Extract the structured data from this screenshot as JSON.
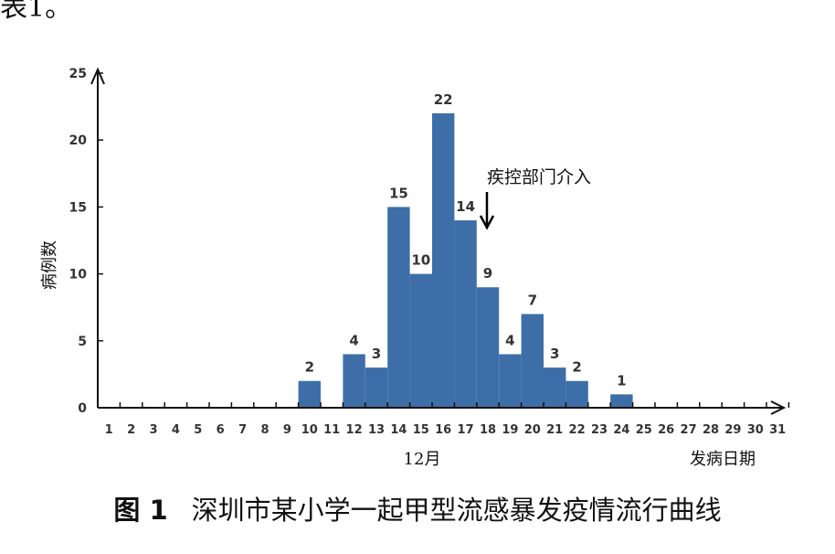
{
  "page": {
    "top_fragment": "表1。"
  },
  "figure": {
    "number": "图 1",
    "caption": "深圳市某小学一起甲型流感暴发疫情流行曲线"
  },
  "chart_data": {
    "type": "bar",
    "title": "",
    "ylabel": "病例数",
    "xlabel": "发病日期",
    "month_label": "12月",
    "ylim": [
      0,
      25
    ],
    "yticks": [
      0,
      5,
      10,
      15,
      20,
      25
    ],
    "categories": [
      "1",
      "2",
      "3",
      "4",
      "5",
      "6",
      "7",
      "8",
      "9",
      "10",
      "11",
      "12",
      "13",
      "14",
      "15",
      "16",
      "17",
      "18",
      "19",
      "20",
      "21",
      "22",
      "23",
      "24",
      "25",
      "26",
      "27",
      "28",
      "29",
      "30",
      "31"
    ],
    "values": [
      0,
      0,
      0,
      0,
      0,
      0,
      0,
      0,
      0,
      2,
      0,
      4,
      3,
      15,
      10,
      22,
      14,
      9,
      4,
      7,
      3,
      2,
      0,
      1,
      0,
      0,
      0,
      0,
      0,
      0,
      0
    ],
    "bar_color": "#3d6ea8",
    "annotation": {
      "text": "疾控部门介入",
      "at_category": "18"
    },
    "grid": false
  }
}
